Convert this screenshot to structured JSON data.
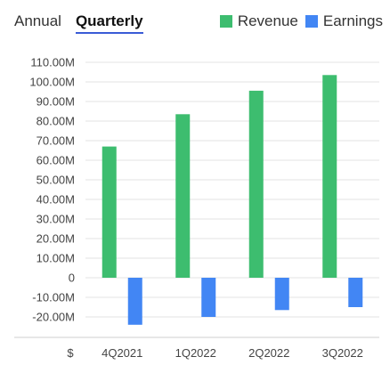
{
  "tabs": [
    {
      "label": "Annual",
      "active": false
    },
    {
      "label": "Quarterly",
      "active": true
    }
  ],
  "legend": [
    {
      "label": "Revenue",
      "color": "#3dbd6f"
    },
    {
      "label": "Earnings",
      "color": "#4286f4"
    }
  ],
  "accent_color": "#3a5bd6",
  "chart_data": {
    "type": "bar",
    "categories": [
      "4Q2021",
      "1Q2022",
      "2Q2022",
      "3Q2022"
    ],
    "series": [
      {
        "name": "Revenue",
        "color": "#3dbd6f",
        "values": [
          67.0,
          83.5,
          95.5,
          103.5
        ]
      },
      {
        "name": "Earnings",
        "color": "#4286f4",
        "values": [
          -24.0,
          -20.0,
          -16.5,
          -15.0
        ]
      }
    ],
    "unit_label": "$",
    "ylim": [
      -20,
      110
    ],
    "yticks": [
      {
        "value": 110,
        "label": "110.00M"
      },
      {
        "value": 100,
        "label": "100.00M"
      },
      {
        "value": 90,
        "label": "90.00M"
      },
      {
        "value": 80,
        "label": "80.00M"
      },
      {
        "value": 70,
        "label": "70.00M"
      },
      {
        "value": 60,
        "label": "60.00M"
      },
      {
        "value": 50,
        "label": "50.00M"
      },
      {
        "value": 40,
        "label": "40.00M"
      },
      {
        "value": 30,
        "label": "30.00M"
      },
      {
        "value": 20,
        "label": "20.00M"
      },
      {
        "value": 10,
        "label": "10.00M"
      },
      {
        "value": 0,
        "label": "0"
      },
      {
        "value": -10,
        "label": "-10.00M"
      },
      {
        "value": -20,
        "label": "-20.00M"
      }
    ],
    "grid": true
  }
}
